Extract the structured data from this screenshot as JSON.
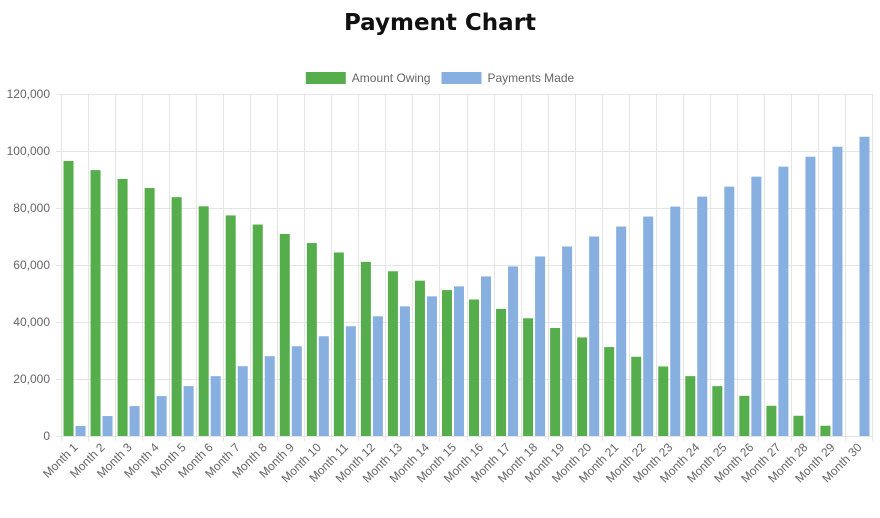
{
  "title": "Payment Chart",
  "colors": {
    "amount_owing": "#55ae4b",
    "payments_made": "#87b0e0",
    "grid": "#e5e5e5",
    "tick_text": "#666666"
  },
  "chart_data": {
    "type": "bar",
    "title": "Payment Chart",
    "xlabel": "",
    "ylabel": "",
    "ylim": [
      0,
      120000
    ],
    "y_ticks": [
      "0",
      "20,000",
      "40,000",
      "60,000",
      "80,000",
      "100,000",
      "120,000"
    ],
    "y_tick_values": [
      0,
      20000,
      40000,
      60000,
      80000,
      100000,
      120000
    ],
    "grid": true,
    "legend_position": "top-center",
    "categories": [
      "Month 1",
      "Month 2",
      "Month 3",
      "Month 4",
      "Month 5",
      "Month 6",
      "Month 7",
      "Month 8",
      "Month 9",
      "Month 10",
      "Month 11",
      "Month 12",
      "Month 13",
      "Month 14",
      "Month 15",
      "Month 16",
      "Month 17",
      "Month 18",
      "Month 19",
      "Month 20",
      "Month 21",
      "Month 22",
      "Month 23",
      "Month 24",
      "Month 25",
      "Month 26",
      "Month 27",
      "Month 28",
      "Month 29",
      "Month 30"
    ],
    "series": [
      {
        "name": "Amount Owing",
        "color": "#55ae4b",
        "values": [
          96500,
          93300,
          90200,
          87000,
          83800,
          80600,
          77400,
          74200,
          70900,
          67700,
          64400,
          61100,
          57800,
          54500,
          51200,
          47900,
          44600,
          41300,
          37900,
          34600,
          31200,
          27800,
          24400,
          21000,
          17500,
          14100,
          10600,
          7100,
          3600,
          0
        ]
      },
      {
        "name": "Payments Made",
        "color": "#87b0e0",
        "values": [
          3500,
          7000,
          10500,
          14000,
          17500,
          21000,
          24500,
          28000,
          31500,
          35000,
          38500,
          42000,
          45500,
          49000,
          52500,
          56000,
          59500,
          63000,
          66500,
          70000,
          73500,
          77000,
          80500,
          84000,
          87500,
          91000,
          94500,
          98000,
          101500,
          105000
        ]
      }
    ]
  }
}
